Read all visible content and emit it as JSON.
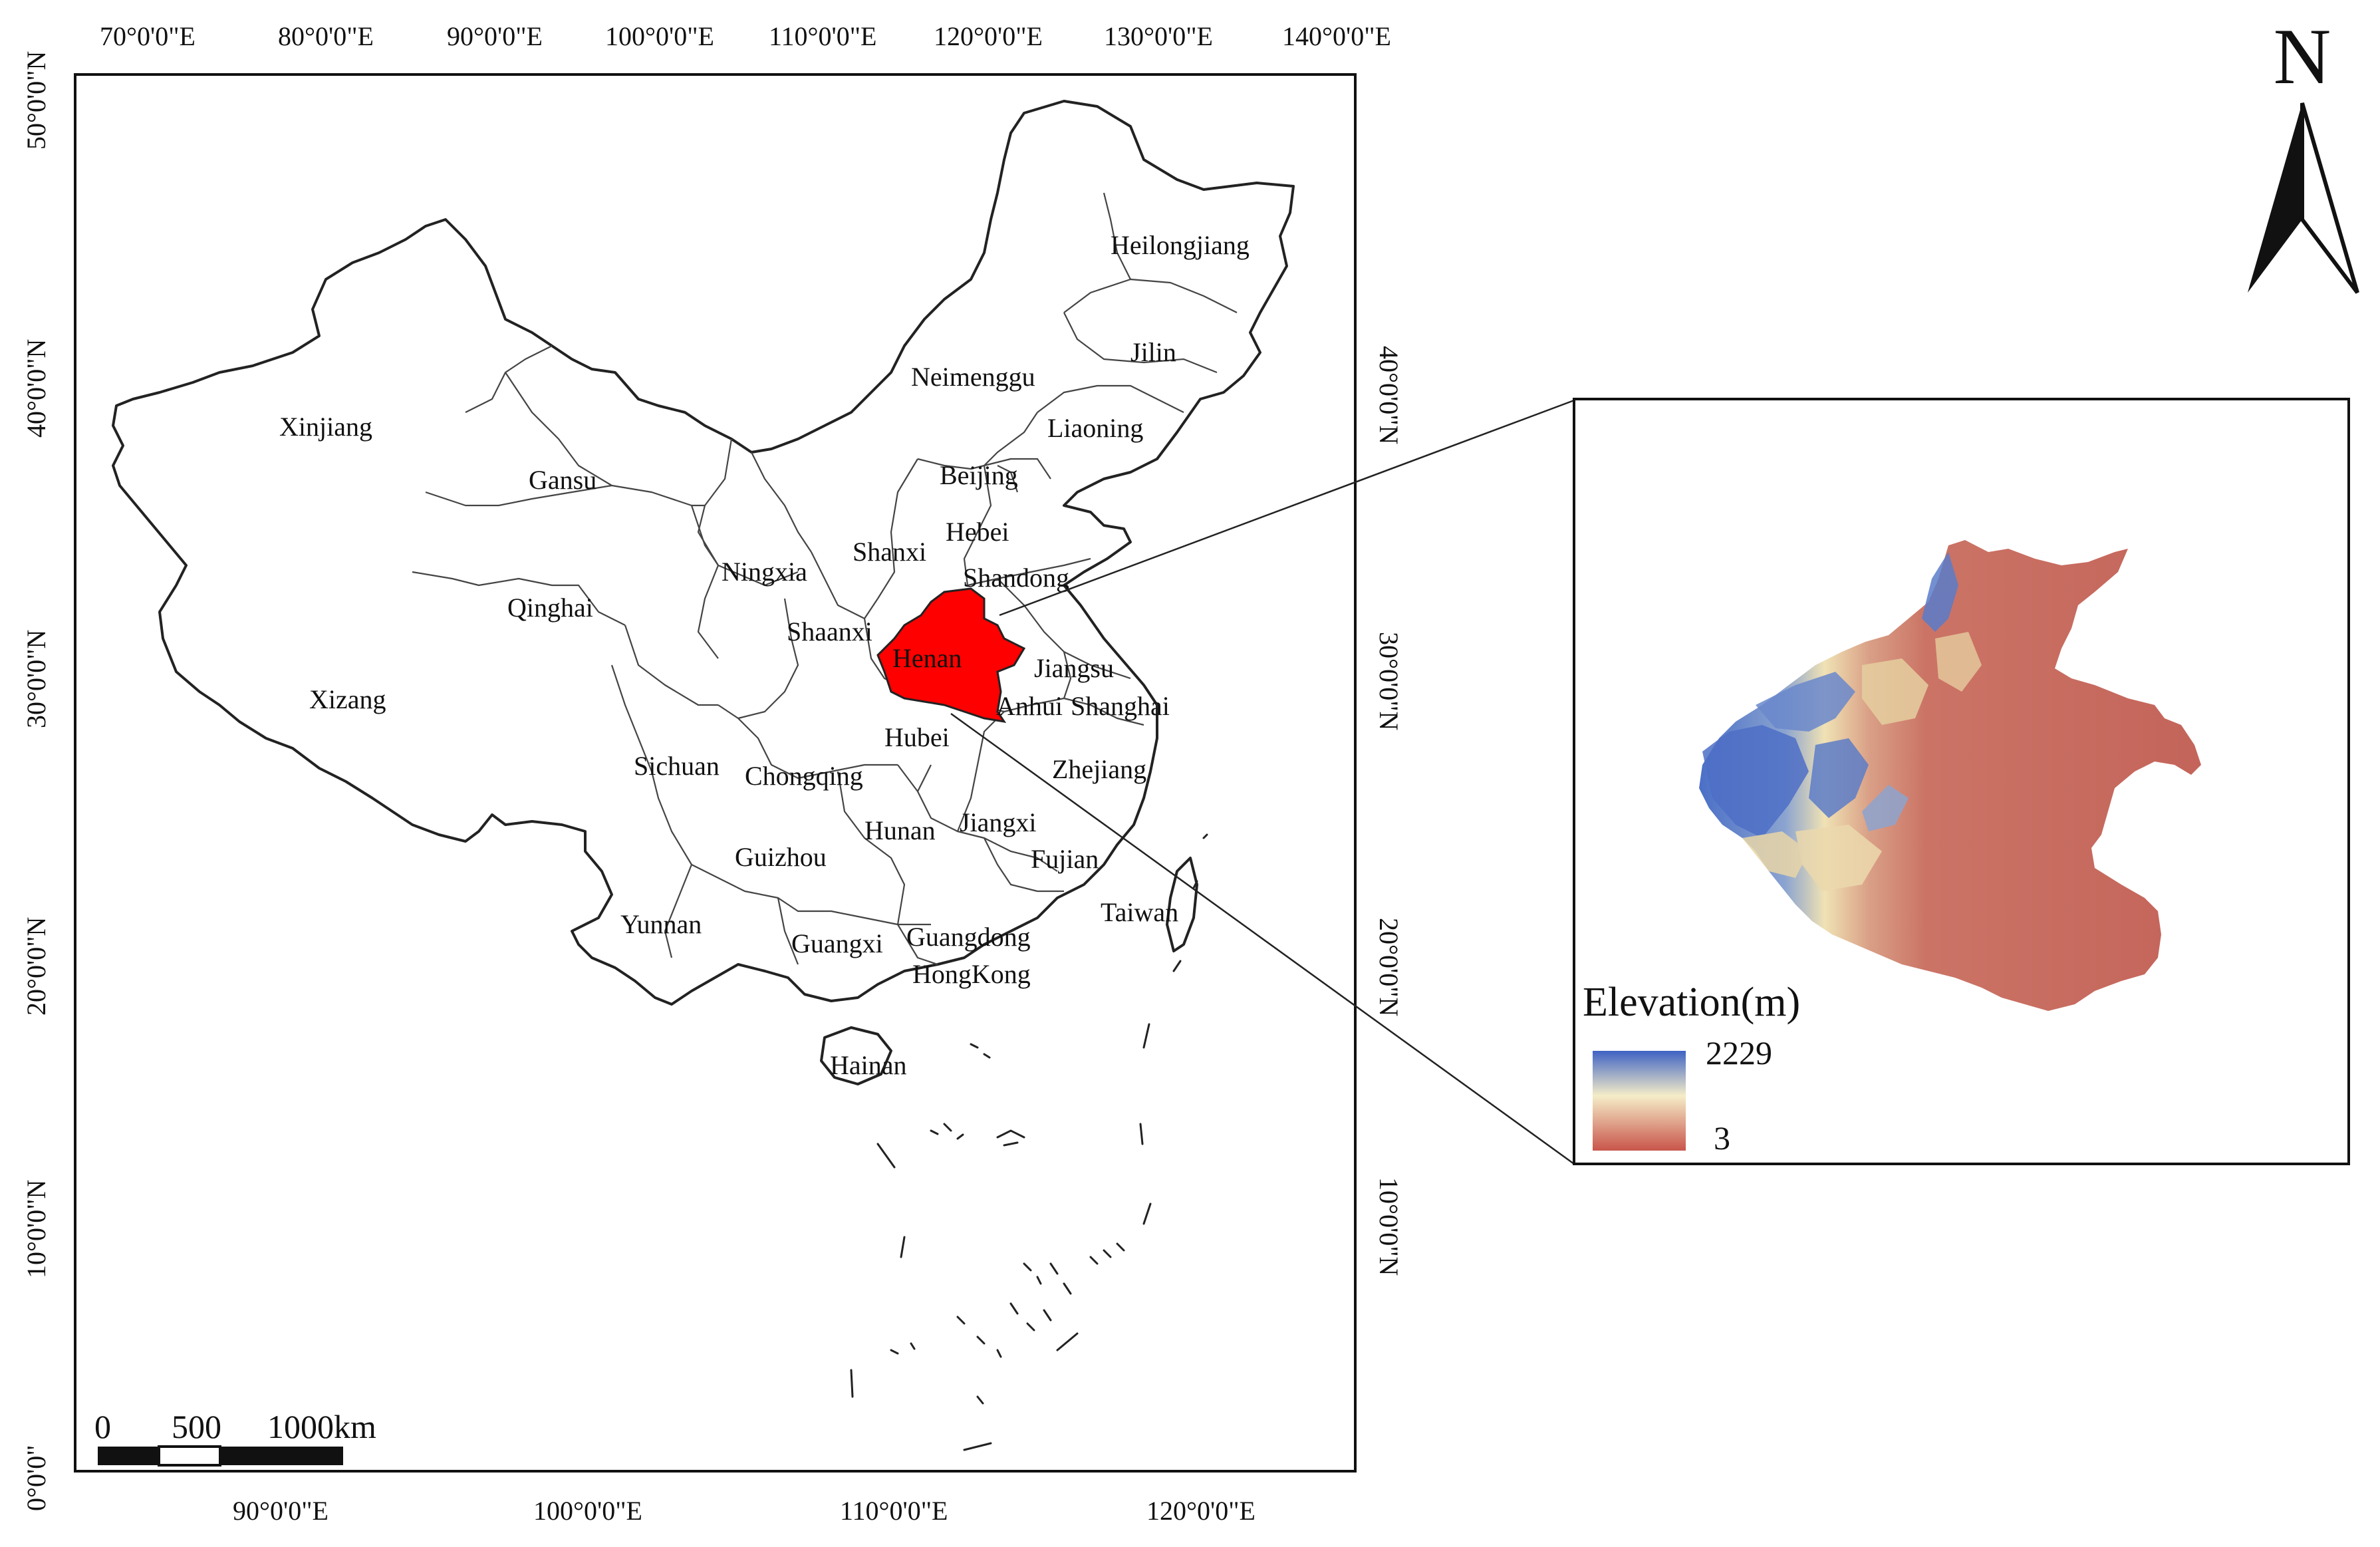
{
  "map": {
    "top_lon_labels": [
      "70°0'0\"E",
      "80°0'0\"E",
      "90°0'0\"E",
      "100°0'0\"E",
      "110°0'0\"E",
      "120°0'0\"E",
      "130°0'0\"E",
      "140°0'0\"E"
    ],
    "bottom_lon_labels": [
      "90°0'0\"E",
      "100°0'0\"E",
      "110°0'0\"E",
      "120°0'0\"E"
    ],
    "left_lat_labels": [
      "50°0'0\"N",
      "40°0'0\"N",
      "30°0'0\"N",
      "20°0'0\"N",
      "10°0'0\"N",
      "0°0'0\""
    ],
    "right_lat_labels": [
      "40°0'0\"N",
      "30°0'0\"N",
      "20°0'0\"N",
      "10°0'0\"N"
    ],
    "highlight_color": "#ff0000",
    "highlight_province": "Henan",
    "provinces": [
      "Heilongjiang",
      "Jilin",
      "Neimenggu",
      "Liaoning",
      "Xinjiang",
      "Gansu",
      "Beijing",
      "Hebei",
      "Shanxi",
      "Ningxia",
      "Shandong",
      "Qinghai",
      "Shaanxi",
      "Henan",
      "Jiangsu",
      "Xizang",
      "Anhui",
      "Shanghai",
      "Hubei",
      "Sichuan",
      "Chongqing",
      "Zhejiang",
      "Hunan",
      "Jiangxi",
      "Guizhou",
      "Fujian",
      "Taiwan",
      "Yunnan",
      "Guangxi",
      "Guangdong",
      "HongKong",
      "Hainan"
    ]
  },
  "scale_bar": {
    "labels": [
      "0",
      "500",
      "1000km"
    ]
  },
  "north_arrow": {
    "label": "N"
  },
  "inset": {
    "legend_title": "Elevation(m)",
    "legend_max": "2229",
    "legend_min": "3",
    "colors": {
      "high": "#4a6fc7",
      "mid": "#f3e6b6",
      "low": "#c9635a"
    }
  }
}
